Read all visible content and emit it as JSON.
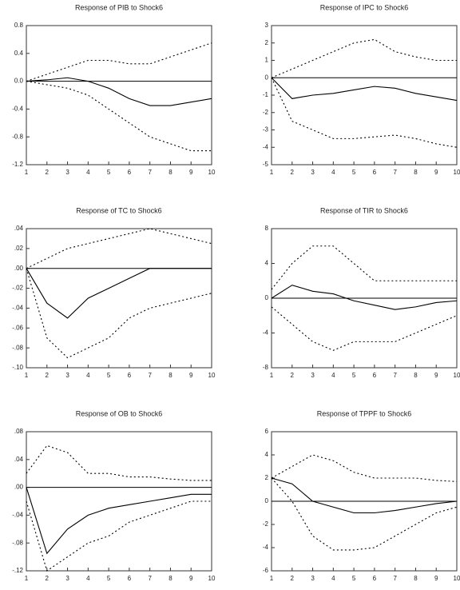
{
  "chart_data": [
    {
      "type": "line",
      "title": "Response of PIB to Shock6",
      "x": [
        1,
        2,
        3,
        4,
        5,
        6,
        7,
        8,
        9,
        10
      ],
      "xlim": [
        1,
        10
      ],
      "xticks": [
        1,
        2,
        3,
        4,
        5,
        6,
        7,
        8,
        9,
        10
      ],
      "ylim": [
        -1.2,
        0.8
      ],
      "yticks": [
        0.8,
        0.4,
        {
          "value": 0,
          "label": "0.0"
        },
        -0.4,
        -0.8,
        -1.2
      ],
      "series": [
        {
          "color": "#000000",
          "dash": false,
          "values": [
            0,
            0.02,
            0.05,
            0.0,
            -0.1,
            -0.25,
            -0.35,
            -0.35,
            -0.3,
            -0.25
          ]
        },
        {
          "color": "#000000",
          "dash": true,
          "values": [
            0,
            0.1,
            0.2,
            0.3,
            0.3,
            0.25,
            0.25,
            0.35,
            0.45,
            0.55
          ]
        },
        {
          "color": "#000000",
          "dash": true,
          "values": [
            0,
            -0.05,
            -0.1,
            -0.2,
            -0.4,
            -0.6,
            -0.8,
            -0.9,
            -1.0,
            -1.0
          ]
        }
      ]
    },
    {
      "type": "line",
      "title": "Response of IPC to Shock6",
      "x": [
        1,
        2,
        3,
        4,
        5,
        6,
        7,
        8,
        9,
        10
      ],
      "xlim": [
        1,
        10
      ],
      "xticks": [
        1,
        2,
        3,
        4,
        5,
        6,
        7,
        8,
        9,
        10
      ],
      "ylim": [
        -5,
        3
      ],
      "yticks": [
        3,
        2,
        1,
        0,
        -1,
        -2,
        -3,
        -4,
        -5
      ],
      "series": [
        {
          "color": "#000000",
          "dash": false,
          "values": [
            0,
            -1.2,
            -1.0,
            -0.9,
            -0.7,
            -0.5,
            -0.6,
            -0.9,
            -1.1,
            -1.3
          ]
        },
        {
          "color": "#000000",
          "dash": true,
          "values": [
            0,
            0.5,
            1.0,
            1.5,
            2.0,
            2.2,
            1.5,
            1.2,
            1.0,
            1.0
          ]
        },
        {
          "color": "#000000",
          "dash": true,
          "values": [
            0,
            -2.5,
            -3.0,
            -3.5,
            -3.5,
            -3.4,
            -3.3,
            -3.5,
            -3.8,
            -4.0
          ]
        }
      ]
    },
    {
      "type": "line",
      "title": "Response of TC to Shock6",
      "x": [
        1,
        2,
        3,
        4,
        5,
        6,
        7,
        8,
        9,
        10
      ],
      "xlim": [
        1,
        10
      ],
      "xticks": [
        1,
        2,
        3,
        4,
        5,
        6,
        7,
        8,
        9,
        10
      ],
      "ylim": [
        -0.1,
        0.04
      ],
      "yticks": [
        {
          "value": 0.04,
          "label": ".04"
        },
        {
          "value": 0.02,
          "label": ".02"
        },
        {
          "value": 0,
          "label": ".00"
        },
        {
          "value": -0.02,
          "label": "-.02"
        },
        {
          "value": -0.04,
          "label": "-.04"
        },
        {
          "value": -0.06,
          "label": "-.06"
        },
        {
          "value": -0.08,
          "label": "-.08"
        },
        {
          "value": -0.1,
          "label": "-.10"
        }
      ],
      "series": [
        {
          "color": "#000000",
          "dash": false,
          "values": [
            0,
            -0.035,
            -0.05,
            -0.03,
            -0.02,
            -0.01,
            0.0,
            0.0,
            0.0,
            0.0
          ]
        },
        {
          "color": "#000000",
          "dash": true,
          "values": [
            0,
            0.01,
            0.02,
            0.025,
            0.03,
            0.035,
            0.04,
            0.035,
            0.03,
            0.025
          ]
        },
        {
          "color": "#000000",
          "dash": true,
          "values": [
            0,
            -0.07,
            -0.09,
            -0.08,
            -0.07,
            -0.05,
            -0.04,
            -0.035,
            -0.03,
            -0.025
          ]
        }
      ]
    },
    {
      "type": "line",
      "title": "Response of TIR to Shock6",
      "x": [
        1,
        2,
        3,
        4,
        5,
        6,
        7,
        8,
        9,
        10
      ],
      "xlim": [
        1,
        10
      ],
      "xticks": [
        1,
        2,
        3,
        4,
        5,
        6,
        7,
        8,
        9,
        10
      ],
      "ylim": [
        -8,
        8
      ],
      "yticks": [
        8,
        4,
        0,
        -4,
        -8
      ],
      "series": [
        {
          "color": "#000000",
          "dash": false,
          "values": [
            0,
            1.5,
            0.8,
            0.5,
            -0.3,
            -0.8,
            -1.3,
            -1.0,
            -0.5,
            -0.3
          ]
        },
        {
          "color": "#000000",
          "dash": true,
          "values": [
            1,
            4,
            6,
            6,
            4,
            2,
            2,
            2,
            2,
            2
          ]
        },
        {
          "color": "#000000",
          "dash": true,
          "values": [
            -1,
            -3,
            -5,
            -6,
            -5,
            -5,
            -5,
            -4,
            -3,
            -2
          ]
        }
      ]
    },
    {
      "type": "line",
      "title": "Response of OB to Shock6",
      "x": [
        1,
        2,
        3,
        4,
        5,
        6,
        7,
        8,
        9,
        10
      ],
      "xlim": [
        1,
        10
      ],
      "xticks": [
        1,
        2,
        3,
        4,
        5,
        6,
        7,
        8,
        9,
        10
      ],
      "ylim": [
        -0.12,
        0.08
      ],
      "yticks": [
        {
          "value": 0.08,
          "label": ".08"
        },
        {
          "value": 0.04,
          "label": ".04"
        },
        {
          "value": 0,
          "label": ".00"
        },
        {
          "value": -0.04,
          "label": "-.04"
        },
        {
          "value": -0.08,
          "label": "-.08"
        },
        {
          "value": -0.12,
          "label": "-.12"
        }
      ],
      "series": [
        {
          "color": "#000000",
          "dash": false,
          "values": [
            0,
            -0.095,
            -0.06,
            -0.04,
            -0.03,
            -0.025,
            -0.02,
            -0.015,
            -0.01,
            -0.01
          ]
        },
        {
          "color": "#000000",
          "dash": true,
          "values": [
            0.02,
            0.06,
            0.05,
            0.02,
            0.02,
            0.015,
            0.015,
            0.012,
            0.01,
            0.01
          ]
        },
        {
          "color": "#000000",
          "dash": true,
          "values": [
            -0.02,
            -0.12,
            -0.1,
            -0.08,
            -0.07,
            -0.05,
            -0.04,
            -0.03,
            -0.02,
            -0.02
          ]
        }
      ]
    },
    {
      "type": "line",
      "title": "Response of TPPF to Shock6",
      "x": [
        1,
        2,
        3,
        4,
        5,
        6,
        7,
        8,
        9,
        10
      ],
      "xlim": [
        1,
        10
      ],
      "xticks": [
        1,
        2,
        3,
        4,
        5,
        6,
        7,
        8,
        9,
        10
      ],
      "ylim": [
        -6,
        6
      ],
      "yticks": [
        6,
        4,
        2,
        0,
        -2,
        -4,
        -6
      ],
      "series": [
        {
          "color": "#000000",
          "dash": false,
          "values": [
            2,
            1.5,
            0,
            -0.5,
            -1,
            -1,
            -0.8,
            -0.5,
            -0.2,
            0
          ]
        },
        {
          "color": "#000000",
          "dash": true,
          "values": [
            2,
            3,
            4,
            3.5,
            2.5,
            2,
            2,
            2,
            1.8,
            1.7
          ]
        },
        {
          "color": "#000000",
          "dash": true,
          "values": [
            2,
            0,
            -3,
            -4.2,
            -4.2,
            -4,
            -3,
            -2,
            -1,
            -0.5
          ]
        }
      ]
    }
  ]
}
